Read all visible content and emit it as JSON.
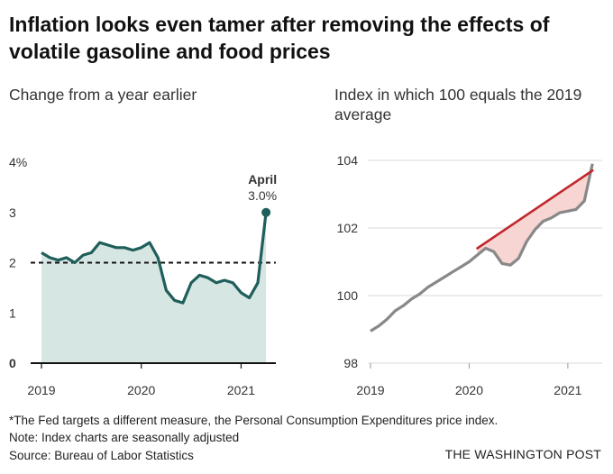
{
  "header": {
    "title": "Inflation looks even tamer after removing  the effects of volatile gasoline and food prices"
  },
  "left_subtitle": "Change from a year earlier",
  "right_subtitle": "Index in which 100 equals the 2019 average",
  "chart_data": [
    {
      "type": "area",
      "ylabel_unit": "%",
      "yticks": [
        "4%",
        "3",
        "2",
        "1",
        "0"
      ],
      "ytick_values": [
        4,
        3,
        2,
        1,
        0
      ],
      "xticks": [
        "2019",
        "2020",
        "2021"
      ],
      "xtick_values": [
        2019,
        2020,
        2021
      ],
      "ylim": [
        0,
        4
      ],
      "xlim": [
        2019.0,
        2021.33
      ],
      "reference_line": 2,
      "annotation": {
        "label": "April",
        "value_text": "3.0%",
        "x": 2021.25,
        "y": 3.0
      },
      "series": [
        {
          "x": [
            2019.0,
            2019.083,
            2019.167,
            2019.25,
            2019.333,
            2019.417,
            2019.5,
            2019.583,
            2019.667,
            2019.75,
            2019.833,
            2019.917,
            2020.0,
            2020.083,
            2020.167,
            2020.25,
            2020.333,
            2020.417,
            2020.5,
            2020.583,
            2020.667,
            2020.75,
            2020.833,
            2020.917,
            2021.0,
            2021.083,
            2021.167,
            2021.25
          ],
          "values": [
            2.2,
            2.1,
            2.05,
            2.1,
            2.0,
            2.15,
            2.2,
            2.4,
            2.35,
            2.3,
            2.3,
            2.25,
            2.3,
            2.4,
            2.1,
            1.45,
            1.25,
            1.2,
            1.6,
            1.75,
            1.7,
            1.6,
            1.65,
            1.6,
            1.4,
            1.3,
            1.6,
            3.0
          ]
        }
      ],
      "colors": {
        "line": "#1f5f5b",
        "fill": "#d6e6e3"
      }
    },
    {
      "type": "line",
      "yticks": [
        "104",
        "102",
        "100",
        "98"
      ],
      "ytick_values": [
        104,
        102,
        100,
        98
      ],
      "xticks": [
        "2019",
        "2020",
        "2021"
      ],
      "xtick_values": [
        2019,
        2020,
        2021
      ],
      "ylim": [
        98,
        104
      ],
      "xlim": [
        2019.0,
        2021.33
      ],
      "series": [
        {
          "x": [
            2019.0,
            2019.083,
            2019.167,
            2019.25,
            2019.333,
            2019.417,
            2019.5,
            2019.583,
            2019.667,
            2019.75,
            2019.833,
            2019.917,
            2020.0,
            2020.083,
            2020.167,
            2020.25,
            2020.333,
            2020.417,
            2020.5,
            2020.583,
            2020.667,
            2020.75,
            2020.833,
            2020.917,
            2021.0,
            2021.083,
            2021.167,
            2021.25
          ],
          "values": [
            98.95,
            99.1,
            99.3,
            99.55,
            99.7,
            99.9,
            100.05,
            100.25,
            100.4,
            100.55,
            100.7,
            100.85,
            101.0,
            101.2,
            101.4,
            101.3,
            100.95,
            100.9,
            101.1,
            101.6,
            101.95,
            102.2,
            102.3,
            102.45,
            102.5,
            102.55,
            102.8,
            103.9
          ]
        },
        {
          "x": [
            2020.083,
            2021.25
          ],
          "values": [
            101.4,
            103.7
          ]
        }
      ],
      "colors": {
        "line": "#888888",
        "trend": "#c0282d",
        "fill": "#f6d5d3"
      }
    }
  ],
  "footer": {
    "note1": "*The Fed targets a different measure, the Personal Consumption Expenditures price index.",
    "note2": "Note: Index charts are seasonally adjusted",
    "source": "Source: Bureau of Labor Statistics",
    "credit": "THE WASHINGTON POST"
  }
}
